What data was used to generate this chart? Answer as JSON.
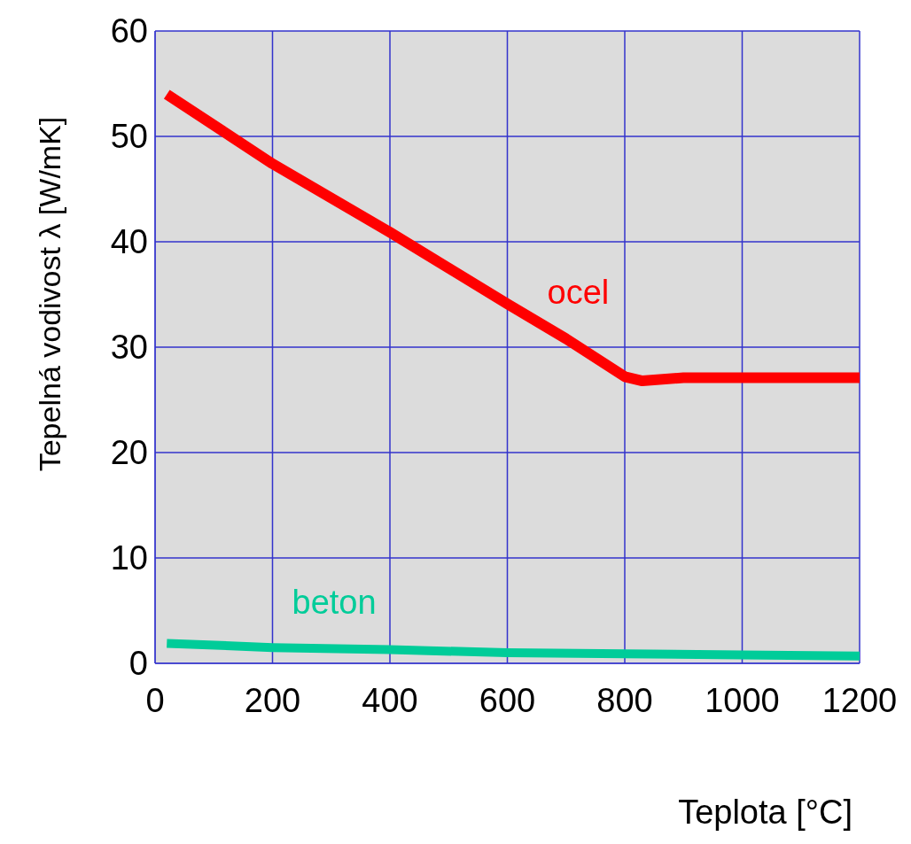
{
  "chart_data": {
    "type": "line",
    "xlabel": "Teplota [°C]",
    "ylabel": "Tepelná vodivost  λ  [W/mK]",
    "xlim": [
      0,
      1200
    ],
    "xticks": [
      0,
      200,
      400,
      600,
      800,
      1000,
      1200
    ],
    "ylim": [
      0,
      60
    ],
    "yticks": [
      0,
      10,
      20,
      30,
      40,
      50,
      60
    ],
    "grid": true,
    "legend": false,
    "marker": "none",
    "line_style": "solid",
    "series": [
      {
        "name": "ocel",
        "color": "#ff0000",
        "x": [
          20,
          200,
          400,
          600,
          700,
          800,
          830,
          900,
          1200
        ],
        "values": [
          54,
          47.4,
          40.9,
          34.1,
          30.8,
          27.2,
          26.8,
          27.1,
          27.1
        ]
      },
      {
        "name": "beton",
        "color": "#00cc99",
        "x": [
          20,
          200,
          400,
          600,
          800,
          1000,
          1200
        ],
        "values": [
          1.9,
          1.5,
          1.3,
          1,
          0.9,
          0.8,
          0.7
        ]
      }
    ]
  }
}
